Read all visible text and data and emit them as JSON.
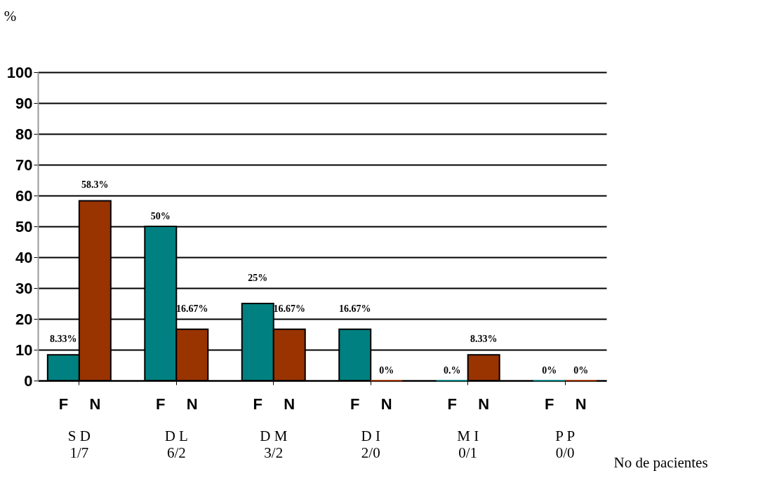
{
  "chart_data": {
    "type": "bar",
    "ylabel": "%",
    "xlabel": "No de pacientes",
    "categories": [
      "S D\n1/7",
      "D L\n6/2",
      "D M\n3/2",
      "D I\n2/0",
      "M I\n0/1",
      "P  P\n0/0"
    ],
    "series": [
      {
        "name": "F",
        "color": "#008080",
        "values": [
          8.33,
          50,
          25,
          16.67,
          0,
          0
        ],
        "value_labels": [
          "8.33%",
          "50%",
          "25%",
          "16.67%",
          "0.%",
          "0%"
        ]
      },
      {
        "name": "N",
        "color": "#993300",
        "values": [
          58.3,
          16.67,
          16.67,
          0,
          8.33,
          0
        ],
        "value_labels": [
          "58.3%",
          "16.67%",
          "16.67%",
          "0%",
          "8.33%",
          "0%"
        ]
      }
    ],
    "ylim": [
      0,
      100
    ],
    "yticks": [
      0,
      10,
      20,
      30,
      40,
      50,
      60,
      70,
      80,
      90,
      100
    ],
    "grid": "y",
    "legend": "bottom"
  }
}
